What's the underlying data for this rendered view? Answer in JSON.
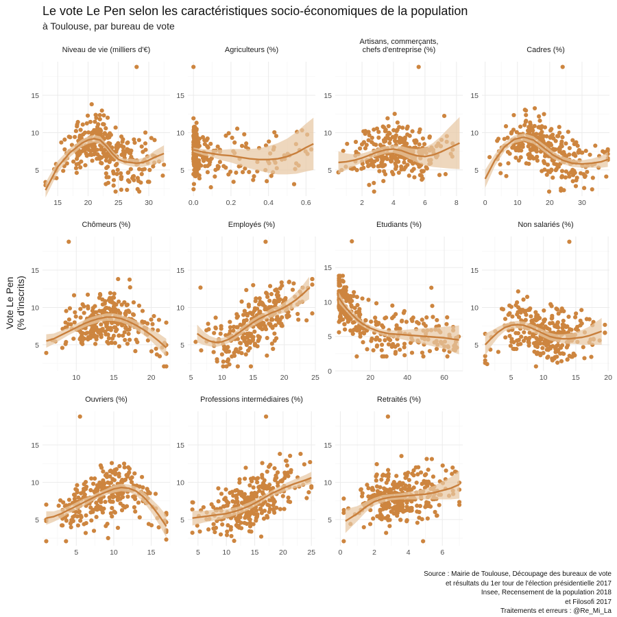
{
  "header": {
    "title": "Le vote Le Pen selon les caractéristiques socio-économiques de la population",
    "subtitle": "à Toulouse, par bureau de vote"
  },
  "y_axis_label": [
    "Vote Le Pen",
    "(% d'inscrits)"
  ],
  "caption": [
    "Source : Mairie de Toulouse, Découpage des bureaux de vote",
    "et résultats du 1er tour de l'élection présidentielle 2017",
    "Insee, Recensement de la population 2018",
    "et Filosofi 2017",
    "Traitements et erreurs : @Re_Mi_La"
  ],
  "colors": {
    "point": "#cd853f",
    "line": "#c87f3c",
    "ribbon": "#e8c8a4",
    "grid_major": "#ebebeb",
    "grid_minor": "#f5f5f5",
    "text": "#4d4d4d"
  },
  "chart_data": [
    {
      "type": "scatter",
      "title": [
        "Niveau de vie (milliers d'€)"
      ],
      "xlim": [
        12.5,
        33.5
      ],
      "ylim": [
        1.5,
        19.5
      ],
      "xticks": [
        15,
        20,
        25,
        30
      ],
      "xtick_labels": [
        "15",
        "20",
        "25",
        "30"
      ],
      "yticks": [
        5,
        10,
        15
      ],
      "ytick_labels": [
        "5",
        "10",
        "15"
      ],
      "points_generated": {
        "n": 300,
        "xrange": [
          13,
          32.5
        ],
        "outlier": [
          28,
          18.8
        ]
      },
      "trend": {
        "x": [
          13,
          15,
          17,
          19,
          20,
          21,
          22,
          23,
          24,
          25,
          26,
          27,
          28,
          29,
          30,
          31,
          32.5
        ],
        "y": [
          2.3,
          5.4,
          7.3,
          8.6,
          9.0,
          9.2,
          9.0,
          8.2,
          7.2,
          6.4,
          6.1,
          6.0,
          5.9,
          6.0,
          6.3,
          6.7,
          7.2
        ],
        "se": [
          1.0,
          0.8,
          0.6,
          0.5,
          0.5,
          0.5,
          0.5,
          0.4,
          0.4,
          0.4,
          0.4,
          0.5,
          0.5,
          0.6,
          0.7,
          0.9,
          1.1
        ]
      }
    },
    {
      "type": "scatter",
      "title": [
        "Agriculteurs (%)"
      ],
      "xlim": [
        -0.03,
        0.65
      ],
      "ylim": [
        1.5,
        19.5
      ],
      "xticks": [
        0,
        0.2,
        0.4,
        0.6
      ],
      "xtick_labels": [
        "0.0",
        "0.2",
        "0.4",
        "0.6"
      ],
      "yticks": [
        5,
        10,
        15
      ],
      "ytick_labels": [
        "5",
        "10",
        "15"
      ],
      "points_generated": {
        "n": 300,
        "xrange": [
          0,
          0.63
        ],
        "outlier": [
          0.0,
          18.8
        ]
      },
      "trend": {
        "x": [
          0,
          0.05,
          0.1,
          0.15,
          0.2,
          0.25,
          0.3,
          0.35,
          0.4,
          0.45,
          0.5,
          0.55,
          0.6,
          0.64
        ],
        "y": [
          7.7,
          7.4,
          7.2,
          7.0,
          6.9,
          6.7,
          6.5,
          6.4,
          6.4,
          6.5,
          6.8,
          7.3,
          8.0,
          8.5
        ],
        "se": [
          0.3,
          0.4,
          0.5,
          0.7,
          0.9,
          1.1,
          1.3,
          1.5,
          1.8,
          2.1,
          2.4,
          2.8,
          3.2,
          3.5
        ]
      }
    },
    {
      "type": "scatter",
      "title": [
        "Artisans, commerçants,",
        "chefs d'entreprise (%)"
      ],
      "xlim": [
        0.3,
        8.4
      ],
      "ylim": [
        1.5,
        19.5
      ],
      "xticks": [
        2,
        4,
        6,
        8
      ],
      "xtick_labels": [
        "2",
        "4",
        "6",
        "8"
      ],
      "yticks": [
        5,
        10,
        15
      ],
      "ytick_labels": [
        "5",
        "10",
        "15"
      ],
      "points_generated": {
        "n": 300,
        "xrange": [
          0.5,
          8.2
        ],
        "outlier": [
          5.6,
          18.8
        ]
      },
      "trend": {
        "x": [
          0.5,
          1,
          1.5,
          2,
          2.5,
          3,
          3.5,
          4,
          4.5,
          5,
          5.5,
          6,
          6.5,
          7,
          7.5,
          8.2
        ],
        "y": [
          6.0,
          6.1,
          6.3,
          6.6,
          7.0,
          7.4,
          7.7,
          7.8,
          7.6,
          7.2,
          6.9,
          6.8,
          7.0,
          7.4,
          7.9,
          8.6
        ],
        "se": [
          1.5,
          1.1,
          0.8,
          0.6,
          0.5,
          0.5,
          0.5,
          0.5,
          0.6,
          0.7,
          0.9,
          1.2,
          1.6,
          2.1,
          2.7,
          3.5
        ]
      }
    },
    {
      "type": "scatter",
      "title": [
        "Cadres (%)"
      ],
      "xlim": [
        -1,
        38.5
      ],
      "ylim": [
        1.5,
        19.5
      ],
      "xticks": [
        0,
        10,
        20,
        30
      ],
      "xtick_labels": [
        "0",
        "10",
        "20",
        "30"
      ],
      "yticks": [
        5,
        10,
        15
      ],
      "ytick_labels": [
        "5",
        "10",
        "15"
      ],
      "points_generated": {
        "n": 300,
        "xrange": [
          0,
          38
        ],
        "outlier": [
          24,
          18.8
        ]
      },
      "trend": {
        "x": [
          0,
          3,
          6,
          9,
          12,
          15,
          18,
          21,
          24,
          27,
          30,
          33,
          36,
          38
        ],
        "y": [
          3.8,
          6.3,
          8.1,
          9.1,
          9.4,
          9.0,
          8.0,
          7.0,
          6.3,
          5.9,
          5.8,
          5.9,
          6.1,
          6.4
        ],
        "se": [
          1.2,
          0.8,
          0.6,
          0.5,
          0.5,
          0.5,
          0.5,
          0.5,
          0.5,
          0.5,
          0.5,
          0.6,
          0.8,
          1.0
        ]
      }
    },
    {
      "type": "scatter",
      "title": [
        "Chômeurs (%)"
      ],
      "xlim": [
        5.5,
        22.5
      ],
      "ylim": [
        1.5,
        19.5
      ],
      "xticks": [
        10,
        15,
        20
      ],
      "xtick_labels": [
        "10",
        "15",
        "20"
      ],
      "yticks": [
        5,
        10,
        15
      ],
      "ytick_labels": [
        "5",
        "10",
        "15"
      ],
      "points_generated": {
        "n": 300,
        "xrange": [
          6,
          22
        ],
        "outlier": [
          9,
          18.8
        ]
      },
      "trend": {
        "x": [
          6,
          7,
          8,
          9,
          10,
          11,
          12,
          13,
          14,
          15,
          16,
          17,
          18,
          19,
          20,
          21,
          22
        ],
        "y": [
          5.5,
          5.8,
          6.3,
          6.8,
          7.3,
          7.8,
          8.2,
          8.5,
          8.7,
          8.7,
          8.5,
          8.1,
          7.6,
          7.0,
          6.3,
          5.5,
          4.6
        ],
        "se": [
          0.9,
          0.7,
          0.6,
          0.5,
          0.5,
          0.5,
          0.5,
          0.5,
          0.5,
          0.5,
          0.5,
          0.5,
          0.6,
          0.7,
          0.8,
          1.0,
          1.2
        ]
      }
    },
    {
      "type": "scatter",
      "title": [
        "Employés (%)"
      ],
      "xlim": [
        4.5,
        25
      ],
      "ylim": [
        1.5,
        19.5
      ],
      "xticks": [
        5,
        10,
        15,
        20,
        25
      ],
      "xtick_labels": [
        "5",
        "10",
        "15",
        "20",
        "25"
      ],
      "yticks": [
        5,
        10,
        15
      ],
      "ytick_labels": [
        "5",
        "10",
        "15"
      ],
      "points_generated": {
        "n": 300,
        "xrange": [
          5.5,
          24.5
        ],
        "outlier": [
          17,
          18.8
        ]
      },
      "trend": {
        "x": [
          6,
          7,
          8,
          9,
          10,
          11,
          12,
          13,
          14,
          15,
          16,
          17,
          18,
          19,
          20,
          21,
          22,
          23,
          24
        ],
        "y": [
          6.5,
          5.9,
          5.5,
          5.3,
          5.4,
          5.7,
          6.2,
          6.8,
          7.4,
          8.0,
          8.5,
          8.9,
          9.3,
          9.6,
          10.0,
          10.5,
          11.1,
          11.8,
          12.6
        ],
        "se": [
          1.2,
          0.9,
          0.7,
          0.6,
          0.5,
          0.5,
          0.5,
          0.5,
          0.5,
          0.5,
          0.5,
          0.5,
          0.6,
          0.6,
          0.7,
          0.8,
          1.0,
          1.2,
          1.5
        ]
      }
    },
    {
      "type": "scatter",
      "title": [
        "Etudiants (%)"
      ],
      "xlim": [
        1,
        70
      ],
      "ylim": [
        0,
        19.5
      ],
      "xticks": [
        20,
        40,
        60
      ],
      "xtick_labels": [
        "20",
        "40",
        "60"
      ],
      "yticks": [
        0,
        5,
        10,
        15
      ],
      "ytick_labels": [
        "0",
        "5",
        "10",
        "15"
      ],
      "points_generated": {
        "n": 300,
        "xrange": [
          3,
          68
        ],
        "outlier": [
          10,
          18.8
        ]
      },
      "trend": {
        "x": [
          3,
          5,
          7,
          10,
          13,
          16,
          20,
          25,
          30,
          35,
          40,
          45,
          50,
          55,
          60,
          65,
          68
        ],
        "y": [
          10.6,
          9.8,
          9.1,
          8.2,
          7.4,
          6.8,
          6.2,
          5.7,
          5.4,
          5.3,
          5.2,
          5.1,
          5.0,
          4.9,
          4.8,
          4.6,
          4.5
        ],
        "se": [
          0.8,
          0.6,
          0.5,
          0.5,
          0.5,
          0.4,
          0.4,
          0.4,
          0.5,
          0.6,
          0.8,
          1.0,
          1.2,
          1.4,
          1.6,
          1.9,
          2.1
        ]
      }
    },
    {
      "type": "scatter",
      "title": [
        "Non salariés (%)"
      ],
      "xlim": [
        0.5,
        20.2
      ],
      "ylim": [
        1.5,
        19.5
      ],
      "xticks": [
        5,
        10,
        15,
        20
      ],
      "xtick_labels": [
        "5",
        "10",
        "15",
        "20"
      ],
      "yticks": [
        5,
        10,
        15
      ],
      "ytick_labels": [
        "5",
        "10",
        "15"
      ],
      "points_generated": {
        "n": 300,
        "xrange": [
          1,
          19.5
        ],
        "outlier": [
          14,
          18.8
        ]
      },
      "trend": {
        "x": [
          1,
          2,
          3,
          4,
          5,
          6,
          7,
          8,
          9,
          10,
          11,
          12,
          13,
          14,
          15,
          16,
          17,
          18,
          19
        ],
        "y": [
          5.0,
          5.9,
          6.7,
          7.3,
          7.6,
          7.7,
          7.6,
          7.3,
          6.9,
          6.5,
          6.1,
          5.9,
          5.8,
          5.8,
          5.9,
          6.0,
          6.2,
          6.5,
          6.8
        ],
        "se": [
          1.5,
          1.0,
          0.7,
          0.5,
          0.5,
          0.5,
          0.5,
          0.5,
          0.5,
          0.5,
          0.5,
          0.5,
          0.6,
          0.7,
          0.8,
          1.0,
          1.2,
          1.5,
          1.8
        ]
      }
    },
    {
      "type": "scatter",
      "title": [
        "Ouvriers (%)"
      ],
      "xlim": [
        0.5,
        17.5
      ],
      "ylim": [
        1.5,
        19.5
      ],
      "xticks": [
        5,
        10,
        15
      ],
      "xtick_labels": [
        "5",
        "10",
        "15"
      ],
      "yticks": [
        5,
        10,
        15
      ],
      "ytick_labels": [
        "5",
        "10",
        "15"
      ],
      "points_generated": {
        "n": 300,
        "xrange": [
          1,
          17
        ],
        "outlier": [
          5.5,
          18.8
        ]
      },
      "trend": {
        "x": [
          1,
          2,
          3,
          4,
          5,
          6,
          7,
          8,
          9,
          10,
          11,
          12,
          13,
          14,
          15,
          16,
          17
        ],
        "y": [
          5.2,
          5.4,
          5.8,
          6.3,
          6.8,
          7.3,
          7.8,
          8.3,
          8.7,
          9.1,
          9.3,
          9.2,
          8.8,
          8.0,
          6.9,
          5.6,
          4.1
        ],
        "se": [
          0.9,
          0.7,
          0.6,
          0.5,
          0.5,
          0.5,
          0.4,
          0.4,
          0.4,
          0.5,
          0.5,
          0.5,
          0.6,
          0.7,
          0.9,
          1.2,
          1.5
        ]
      }
    },
    {
      "type": "scatter",
      "title": [
        "Professions intermédiaires (%)"
      ],
      "xlim": [
        3.2,
        25.7
      ],
      "ylim": [
        1.5,
        19.5
      ],
      "xticks": [
        5,
        10,
        15,
        20,
        25
      ],
      "xtick_labels": [
        "5",
        "10",
        "15",
        "20",
        "25"
      ],
      "yticks": [
        5,
        10,
        15
      ],
      "ytick_labels": [
        "5",
        "10",
        "15"
      ],
      "points_generated": {
        "n": 300,
        "xrange": [
          4,
          25
        ],
        "outlier": [
          17,
          18.8
        ]
      },
      "trend": {
        "x": [
          4,
          6,
          8,
          10,
          12,
          14,
          16,
          18,
          20,
          22,
          24,
          25
        ],
        "y": [
          5.2,
          5.4,
          5.6,
          5.8,
          6.2,
          6.8,
          7.6,
          8.5,
          9.2,
          9.8,
          10.3,
          10.6
        ],
        "se": [
          1.0,
          0.8,
          0.7,
          0.6,
          0.5,
          0.5,
          0.4,
          0.4,
          0.5,
          0.6,
          0.7,
          0.8
        ]
      }
    },
    {
      "type": "scatter",
      "title": [
        "Retraités (%)"
      ],
      "xlim": [
        -0.3,
        7.2
      ],
      "ylim": [
        1.5,
        19.5
      ],
      "xticks": [
        0,
        2,
        4,
        6
      ],
      "xtick_labels": [
        "0",
        "2",
        "4",
        "6"
      ],
      "yticks": [
        5,
        10,
        15
      ],
      "ytick_labels": [
        "5",
        "10",
        "15"
      ],
      "points_generated": {
        "n": 300,
        "xrange": [
          0.2,
          7
        ],
        "outlier": [
          2.8,
          18.8
        ]
      },
      "trend": {
        "x": [
          0.3,
          1,
          1.5,
          2,
          2.5,
          3,
          3.5,
          4,
          4.5,
          5,
          5.5,
          6,
          6.5,
          7
        ],
        "y": [
          4.8,
          5.8,
          6.7,
          7.4,
          7.8,
          8.0,
          8.1,
          8.2,
          8.3,
          8.4,
          8.6,
          8.9,
          9.2,
          9.7
        ],
        "se": [
          1.6,
          1.0,
          0.7,
          0.5,
          0.5,
          0.4,
          0.4,
          0.5,
          0.6,
          0.7,
          0.9,
          1.2,
          1.5,
          1.9
        ]
      }
    }
  ]
}
